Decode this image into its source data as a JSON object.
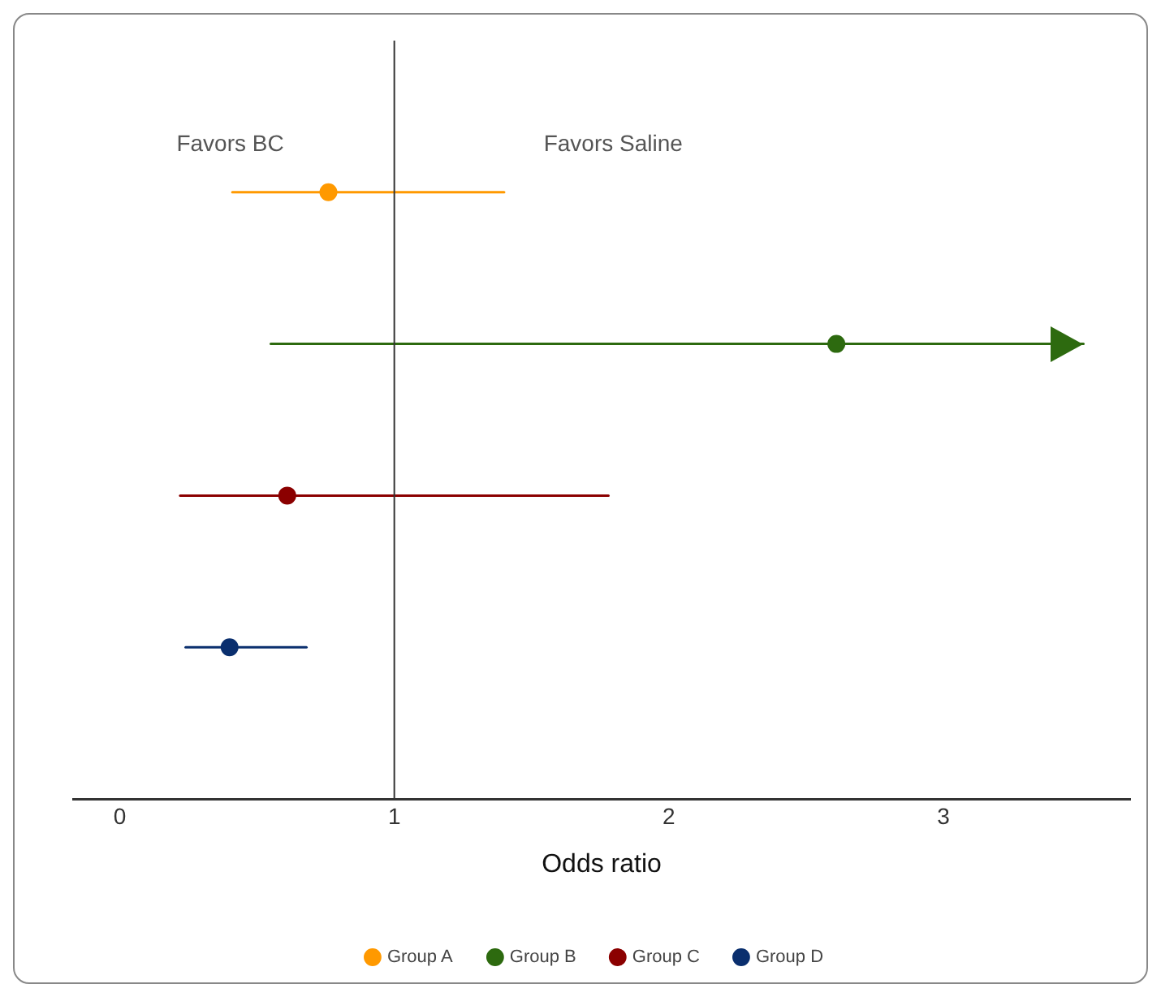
{
  "chart_data": {
    "type": "scatter",
    "orientation": "horizontal",
    "xlabel": "Odds ratio",
    "categories": [
      null,
      null,
      null,
      null
    ],
    "series": [
      {
        "name": "Group A",
        "color": "#ff9900",
        "values": [
          0.76,
          null,
          null,
          null
        ],
        "errors": [
          [
            0.41,
            1.4
          ],
          null,
          null,
          null
        ]
      },
      {
        "name": "Group B",
        "color": "#2d6a0f",
        "values": [
          null,
          2.61,
          null,
          null
        ],
        "errors": [
          null,
          [
            0.55,
            3.51
          ],
          null,
          null
        ]
      },
      {
        "name": "Group C",
        "color": "#8b0000",
        "values": [
          null,
          null,
          0.61,
          null
        ],
        "errors": [
          null,
          null,
          [
            0.22,
            1.78
          ],
          null
        ]
      },
      {
        "name": "Group D",
        "color": "#0a2f6e",
        "values": [
          null,
          null,
          null,
          0.4
        ],
        "errors": [
          null,
          null,
          null,
          [
            0.24,
            0.68
          ]
        ]
      }
    ],
    "xlim": [
      -0.17,
      3.68
    ],
    "xticks": [
      0,
      1,
      2,
      3
    ],
    "ref_lines": [
      {
        "axis": "x",
        "value": 1,
        "color": "#333333"
      }
    ],
    "annotations": [
      "Favors BC",
      "Favors Saline"
    ],
    "grid": false,
    "legend": "bottom",
    "marker": "circle",
    "tick_labels": "x"
  }
}
